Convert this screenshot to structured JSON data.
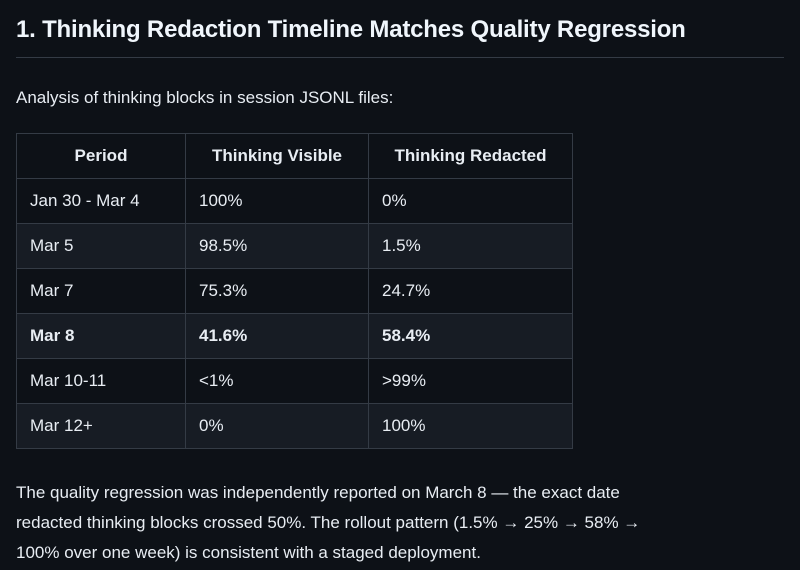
{
  "page": {
    "background_color": "#0d1117",
    "text_color": "#e8edf3",
    "heading_color": "#f0f6fc",
    "border_color": "#343b45",
    "row_alt_color": "#171c24"
  },
  "heading": "1. Thinking Redaction Timeline Matches Quality Regression",
  "intro": "Analysis of thinking blocks in session JSONL files:",
  "table": {
    "columns": [
      "Period",
      "Thinking Visible",
      "Thinking Redacted"
    ],
    "rows": [
      {
        "period": "Jan 30 - Mar 4",
        "visible": "100%",
        "redacted": "0%",
        "bold": false
      },
      {
        "period": "Mar 5",
        "visible": "98.5%",
        "redacted": "1.5%",
        "bold": false
      },
      {
        "period": "Mar 7",
        "visible": "75.3%",
        "redacted": "24.7%",
        "bold": false
      },
      {
        "period": "Mar 8",
        "visible": "41.6%",
        "redacted": "58.4%",
        "bold": true
      },
      {
        "period": "Mar 10-11",
        "visible": "<1%",
        "redacted": ">99%",
        "bold": false
      },
      {
        "period": "Mar 12+",
        "visible": "0%",
        "redacted": "100%",
        "bold": false
      }
    ]
  },
  "footer_note": "The quality regression was independently reported on March 8 — the exact date redacted thinking blocks crossed 50%. The rollout pattern (1.5% → 25% → 58% → 100% over one week) is consistent with a staged deployment."
}
